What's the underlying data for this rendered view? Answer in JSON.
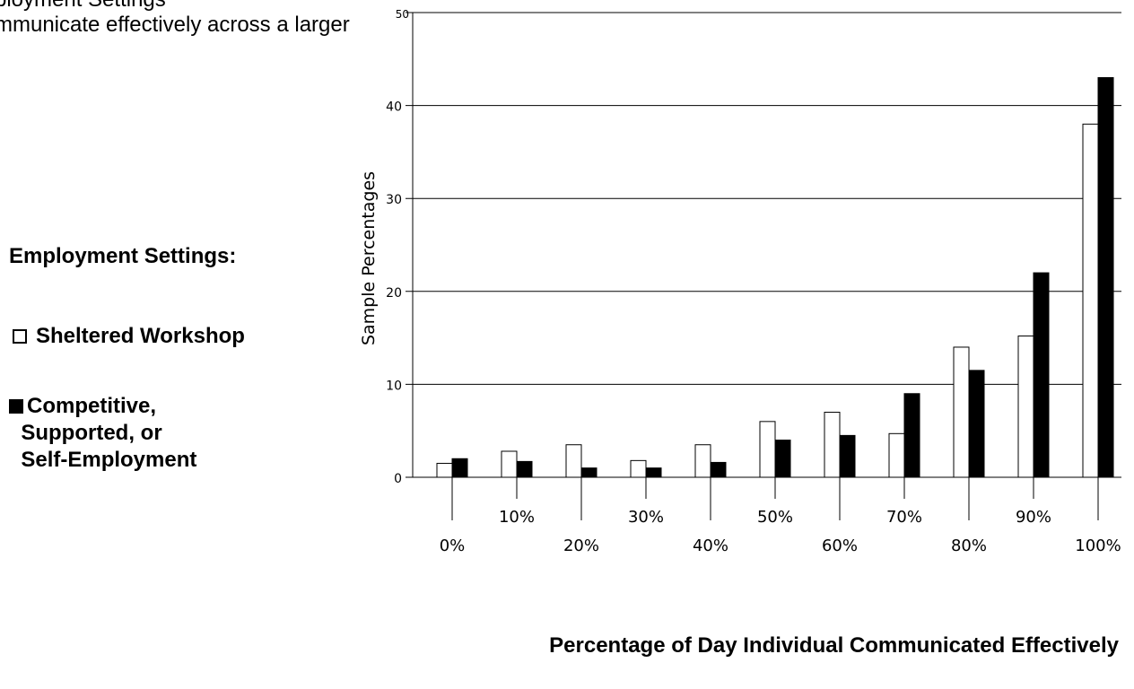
{
  "top_text": {
    "line1": "ployment Settings",
    "line2": "mmunicate effectively across a larger"
  },
  "legend": {
    "heading": "Employment Settings:",
    "items": [
      {
        "label": "Sheltered Workshop",
        "style": "open"
      },
      {
        "label": "Competitive,\n  Supported, or\n  Self-Employment",
        "style": "filled"
      }
    ]
  },
  "chart_data": {
    "type": "bar",
    "title": "",
    "xlabel": "Percentage of Day Individual Communicated Effectively",
    "ylabel": "Sample Percentages",
    "ylim": [
      0,
      50
    ],
    "yticks": [
      0,
      10,
      20,
      30,
      40,
      50
    ],
    "grid": true,
    "legend_position": "left",
    "categories": [
      "0%",
      "10%",
      "20%",
      "30%",
      "40%",
      "50%",
      "60%",
      "70%",
      "80%",
      "90%",
      "100%"
    ],
    "series": [
      {
        "name": "Sheltered Workshop",
        "color": "#ffffff",
        "values": [
          1.5,
          2.8,
          3.5,
          1.8,
          3.5,
          6.0,
          7.0,
          4.7,
          14.0,
          15.2,
          38.0
        ]
      },
      {
        "name": "Competitive, Supported, or Self-Employment",
        "color": "#000000",
        "values": [
          2.0,
          1.7,
          1.0,
          1.0,
          1.6,
          4.0,
          4.5,
          9.0,
          11.5,
          22.0,
          43.0
        ]
      }
    ]
  }
}
